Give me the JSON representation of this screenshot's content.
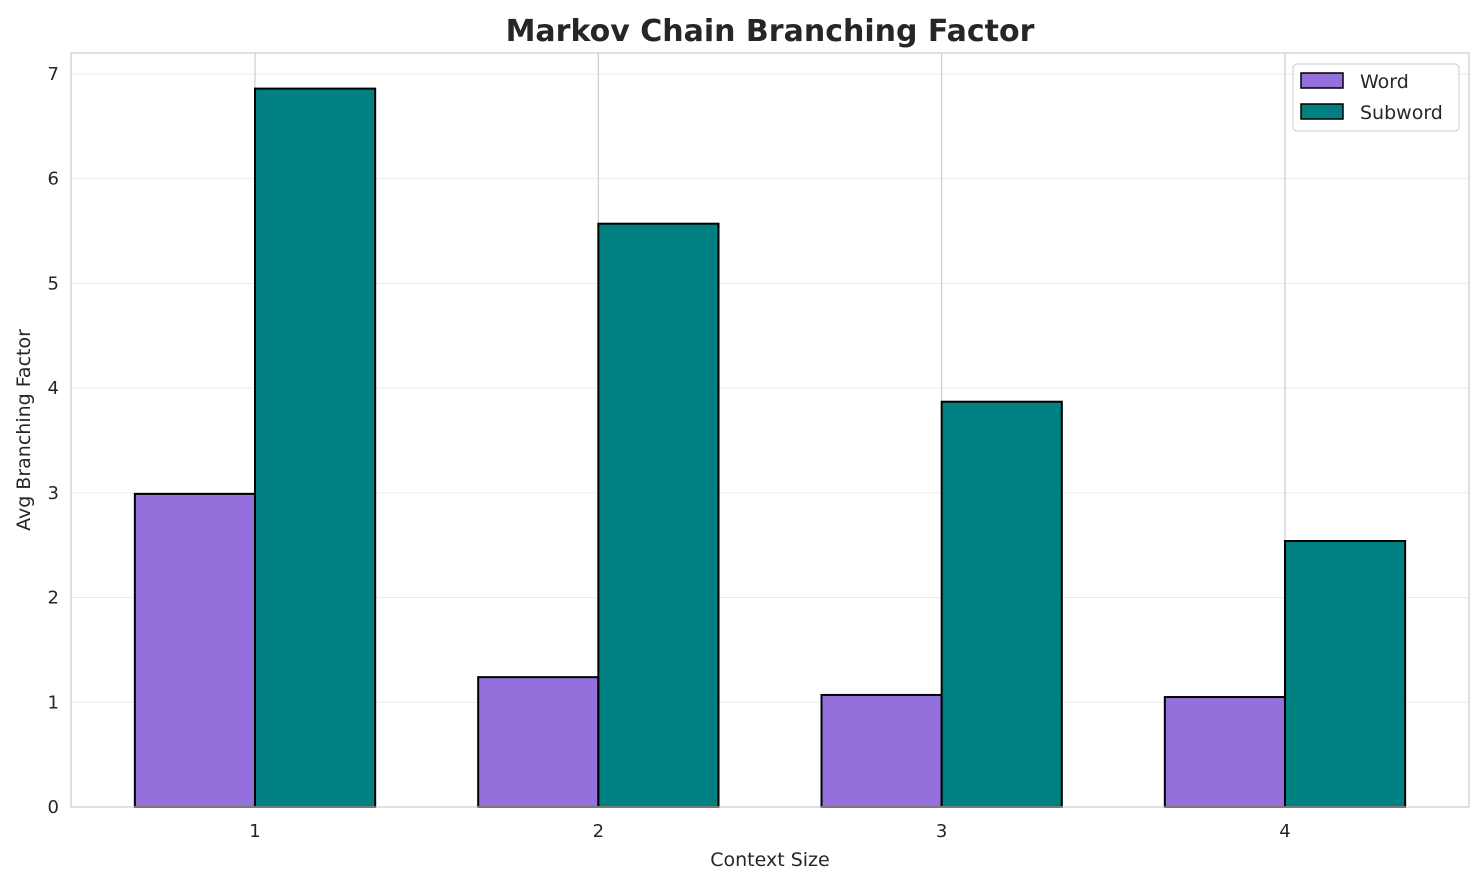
{
  "chart_data": {
    "type": "bar",
    "title": "Markov Chain Branching Factor",
    "xlabel": "Context Size",
    "ylabel": "Avg Branching Factor",
    "categories": [
      "1",
      "2",
      "3",
      "4"
    ],
    "series": [
      {
        "name": "Word",
        "values": [
          2.99,
          1.24,
          1.07,
          1.05
        ],
        "color": "#9370DB"
      },
      {
        "name": "Subword",
        "values": [
          6.86,
          5.57,
          3.87,
          2.54
        ],
        "color": "#008080"
      }
    ],
    "ylim": [
      0,
      7.2
    ],
    "yticks": [
      "0",
      "1",
      "2",
      "3",
      "4",
      "5",
      "6",
      "7"
    ],
    "grid": true,
    "legend": "top-right",
    "bar_edge_color": "#000000"
  }
}
